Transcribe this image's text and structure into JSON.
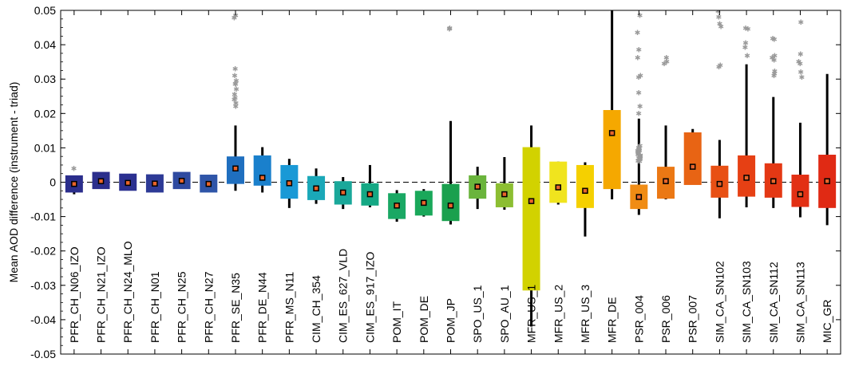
{
  "chart_data": {
    "type": "boxplot",
    "ylabel": "Mean AOD difference (instrument - triad)",
    "ylim": [
      -0.05,
      0.05
    ],
    "yticks": [
      -0.05,
      -0.04,
      -0.03,
      -0.02,
      -0.01,
      0,
      0.01,
      0.02,
      0.03,
      0.04,
      0.05
    ],
    "ytick_labels": [
      "-0.05",
      "-0.04",
      "-0.03",
      "-0.02",
      "-0.01",
      "0",
      "0.01",
      "0.02",
      "0.03",
      "0.04",
      "0.05"
    ],
    "zero_line": "dashed",
    "categories": [
      {
        "label": "PFR_CH_N06_IZO",
        "color": "#2b2e8c",
        "q1": -0.003,
        "q3": 0.002,
        "mean": -0.0005,
        "wlo": -0.0035,
        "whi": 0.0015,
        "outliers": [
          0.004
        ]
      },
      {
        "label": "PFR_CH_N21_IZO",
        "color": "#2b2e8c",
        "q1": -0.002,
        "q3": 0.003,
        "mean": 0.0003,
        "wlo": -0.0015,
        "whi": 0.0025,
        "outliers": []
      },
      {
        "label": "PFR_CH_N24_MLO",
        "color": "#2b3090",
        "q1": -0.0025,
        "q3": 0.0025,
        "mean": -0.0002,
        "wlo": -0.002,
        "whi": 0.002,
        "outliers": []
      },
      {
        "label": "PFR_CH_N01",
        "color": "#2d3a96",
        "q1": -0.003,
        "q3": 0.0023,
        "mean": -0.0004,
        "wlo": -0.0028,
        "whi": 0.002,
        "outliers": []
      },
      {
        "label": "PFR_CH_N25",
        "color": "#2f4aa0",
        "q1": -0.002,
        "q3": 0.003,
        "mean": 0.0004,
        "wlo": -0.0018,
        "whi": 0.0028,
        "outliers": []
      },
      {
        "label": "PFR_CH_N27",
        "color": "#2f55a8",
        "q1": -0.003,
        "q3": 0.0022,
        "mean": -0.0005,
        "wlo": -0.0028,
        "whi": 0.002,
        "outliers": []
      },
      {
        "label": "PFR_SE_N35",
        "color": "#1f6fbf",
        "q1": -0.0005,
        "q3": 0.0075,
        "mean": 0.004,
        "wlo": -0.0025,
        "whi": 0.0165,
        "outliers": [
          0.0485,
          0.0478,
          0.033,
          0.031,
          0.0295,
          0.0285,
          0.0285,
          0.027,
          0.0255,
          0.0245,
          0.024,
          0.023,
          0.022
        ]
      },
      {
        "label": "PFR_DE_N44",
        "color": "#1a80cc",
        "q1": -0.001,
        "q3": 0.0078,
        "mean": 0.0013,
        "wlo": -0.003,
        "whi": 0.0102,
        "outliers": []
      },
      {
        "label": "PFR_MS_N11",
        "color": "#1a99d6",
        "q1": -0.0048,
        "q3": 0.005,
        "mean": -0.0003,
        "wlo": -0.0075,
        "whi": 0.0068,
        "outliers": []
      },
      {
        "label": "CIM_CH_354",
        "color": "#1aa8b8",
        "q1": -0.0052,
        "q3": 0.0018,
        "mean": -0.0018,
        "wlo": -0.0063,
        "whi": 0.004,
        "outliers": []
      },
      {
        "label": "CIM_ES_627_VLD",
        "color": "#1aa89a",
        "q1": -0.0065,
        "q3": 0.0003,
        "mean": -0.003,
        "wlo": -0.0078,
        "whi": 0.0015,
        "outliers": []
      },
      {
        "label": "CIM_ES_917_IZO",
        "color": "#14a884",
        "q1": -0.0068,
        "q3": -0.0003,
        "mean": -0.0035,
        "wlo": -0.0073,
        "whi": 0.005,
        "outliers": []
      },
      {
        "label": "POM_IT",
        "color": "#1aa864",
        "q1": -0.0107,
        "q3": -0.0032,
        "mean": -0.0068,
        "wlo": -0.0115,
        "whi": -0.0023,
        "outliers": []
      },
      {
        "label": "POM_DE",
        "color": "#1aa85a",
        "q1": -0.0097,
        "q3": -0.0025,
        "mean": -0.006,
        "wlo": -0.01,
        "whi": -0.002,
        "outliers": []
      },
      {
        "label": "POM_JP",
        "color": "#1aa04e",
        "q1": -0.0113,
        "q3": -0.0005,
        "mean": -0.0068,
        "wlo": -0.0123,
        "whi": 0.0178,
        "outliers": [
          0.0448,
          0.0445
        ]
      },
      {
        "label": "SPO_US_1",
        "color": "#6ab43c",
        "q1": -0.0048,
        "q3": 0.002,
        "mean": -0.0013,
        "wlo": -0.0078,
        "whi": 0.0045,
        "outliers": []
      },
      {
        "label": "SPO_AU_1",
        "color": "#8cbe32",
        "q1": -0.0073,
        "q3": -0.0003,
        "mean": -0.0035,
        "wlo": -0.008,
        "whi": 0.0073,
        "outliers": []
      },
      {
        "label": "MFR_US_1",
        "color": "#d2d200",
        "q1": -0.0315,
        "q3": 0.0102,
        "mean": -0.0055,
        "wlo": -0.042,
        "whi": 0.0165,
        "outliers": []
      },
      {
        "label": "MFR_US_2",
        "color": "#f0e41e",
        "q1": -0.006,
        "q3": 0.006,
        "mean": -0.0015,
        "wlo": -0.0065,
        "whi": 0.006,
        "outliers": []
      },
      {
        "label": "MFR_US_3",
        "color": "#f5d000",
        "q1": -0.0075,
        "q3": 0.005,
        "mean": -0.0025,
        "wlo": -0.0158,
        "whi": 0.0058,
        "outliers": []
      },
      {
        "label": "MFR_DE",
        "color": "#f5a800",
        "q1": -0.002,
        "q3": 0.021,
        "mean": 0.0143,
        "wlo": -0.005,
        "whi": 0.0505,
        "outliers": []
      },
      {
        "label": "PSR_004",
        "color": "#f08c14",
        "q1": -0.0078,
        "q3": -0.0007,
        "mean": -0.0043,
        "wlo": -0.0095,
        "whi": 0.0185,
        "outliers": [
          0.0485,
          0.0435,
          0.0385,
          0.0362,
          0.031,
          0.0305,
          0.026,
          0.022,
          0.02,
          0.0105,
          0.01,
          0.0098,
          0.0095,
          0.0092,
          0.009,
          0.0088,
          0.0085,
          0.0082,
          0.008,
          0.0078,
          0.0075,
          0.0072,
          0.007,
          0.0068,
          0.0065,
          0.0062,
          0.006
        ]
      },
      {
        "label": "PSR_006",
        "color": "#eb7814",
        "q1": -0.0048,
        "q3": 0.0045,
        "mean": 0.0003,
        "wlo": -0.005,
        "whi": 0.0165,
        "outliers": [
          0.0362,
          0.035,
          0.0345
        ]
      },
      {
        "label": "PSR_007",
        "color": "#e86414",
        "q1": -0.0008,
        "q3": 0.0145,
        "mean": 0.0045,
        "wlo": -0.0005,
        "whi": 0.0155,
        "outliers": []
      },
      {
        "label": "SIM_CA_SN102",
        "color": "#e85014",
        "q1": -0.0045,
        "q3": 0.0048,
        "mean": -0.0005,
        "wlo": -0.0105,
        "whi": 0.0123,
        "outliers": [
          0.0498,
          0.048,
          0.046,
          0.0453,
          0.034,
          0.0335
        ]
      },
      {
        "label": "SIM_CA_SN103",
        "color": "#e64014",
        "q1": -0.0042,
        "q3": 0.0078,
        "mean": 0.0013,
        "wlo": -0.0073,
        "whi": 0.0343,
        "outliers": [
          0.0448,
          0.0445,
          0.0405,
          0.0392,
          0.0368
        ]
      },
      {
        "label": "SIM_CA_SN112",
        "color": "#e43814",
        "q1": -0.0045,
        "q3": 0.0055,
        "mean": 0.0003,
        "wlo": -0.0075,
        "whi": 0.0248,
        "outliers": [
          0.0418,
          0.0415,
          0.0368,
          0.0362,
          0.0355,
          0.0322,
          0.0315,
          0.031
        ]
      },
      {
        "label": "SIM_CA_SN113",
        "color": "#e23014",
        "q1": -0.0072,
        "q3": 0.0022,
        "mean": -0.0035,
        "wlo": -0.0102,
        "whi": 0.0173,
        "outliers": [
          0.0465,
          0.0372,
          0.035,
          0.0345,
          0.032,
          0.0305
        ]
      },
      {
        "label": "MIC_GR",
        "color": "#e02a14",
        "q1": -0.0075,
        "q3": 0.008,
        "mean": 0.0003,
        "wlo": -0.0125,
        "whi": 0.0315,
        "outliers": []
      }
    ]
  }
}
